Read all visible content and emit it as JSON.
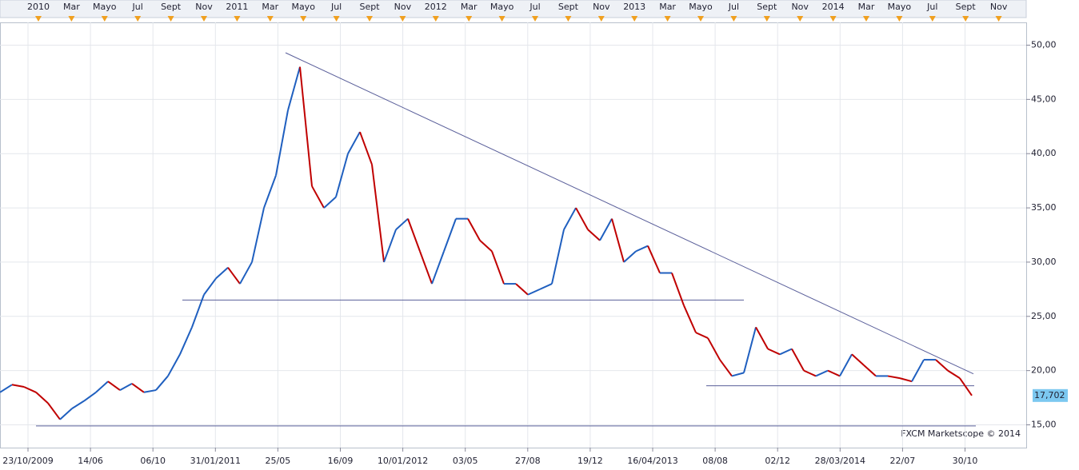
{
  "chart_data": {
    "type": "line",
    "top_axis_labels": [
      "2010",
      "Mar",
      "Mayo",
      "Jul",
      "Sept",
      "Nov",
      "2011",
      "Mar",
      "Mayo",
      "Jul",
      "Sept",
      "Nov",
      "2012",
      "Mar",
      "Mayo",
      "Jul",
      "Sept",
      "Nov",
      "2013",
      "Mar",
      "Mayo",
      "Jul",
      "Sept",
      "Nov",
      "2014",
      "Mar",
      "Mayo",
      "Jul",
      "Sept",
      "Nov"
    ],
    "x_axis_labels": [
      "23/10/2009",
      "14/06",
      "06/10",
      "31/01/2011",
      "25/05",
      "16/09",
      "10/01/2012",
      "03/05",
      "27/08",
      "19/12",
      "16/04/2013",
      "08/08",
      "02/12",
      "28/03/2014",
      "22/07",
      "30/10"
    ],
    "series": [
      {
        "up_color": "#1f5fbf",
        "down_color": "#c00000",
        "values": [
          18,
          18.7,
          18.5,
          18,
          17,
          15.5,
          16.5,
          17.2,
          18,
          19,
          18.2,
          18.8,
          18,
          18.2,
          19.5,
          21.5,
          24,
          27,
          28.5,
          29.5,
          28,
          30,
          35,
          38,
          44,
          48,
          37,
          35,
          36,
          40,
          42,
          39,
          30,
          33,
          34,
          31,
          28,
          31,
          34,
          34,
          32,
          31,
          28,
          28,
          27,
          27.5,
          28,
          33,
          35,
          33,
          32,
          34,
          30,
          31,
          31.5,
          29,
          29,
          26,
          23.5,
          23,
          21,
          19.5,
          19.8,
          24,
          22,
          21.5,
          22,
          20,
          19.5,
          20,
          19.5,
          21.5,
          20.5,
          19.5,
          19.5,
          19.3,
          19,
          21,
          21,
          20,
          19.3,
          17.702
        ]
      }
    ],
    "last_price": {
      "value": 17.702,
      "label": "17,702"
    },
    "trendlines": [
      {
        "values": [
          49.3,
          19.7
        ]
      },
      {
        "values": [
          26.5,
          26.5
        ]
      },
      {
        "values": [
          18.6,
          18.6
        ]
      },
      {
        "values": [
          14.9,
          14.9
        ]
      }
    ],
    "ylim": [
      12.9,
      52.1
    ],
    "yticks": [
      {
        "value": 15,
        "label": "15,00"
      },
      {
        "value": 20,
        "label": "20,00"
      },
      {
        "value": 25,
        "label": "25,00"
      },
      {
        "value": 30,
        "label": "30,00"
      },
      {
        "value": 35,
        "label": "35,00"
      },
      {
        "value": 40,
        "label": "40,00"
      },
      {
        "value": 45,
        "label": "45,00"
      },
      {
        "value": 50,
        "label": "50,00"
      }
    ],
    "grid": true,
    "watermark": "FXCM Marketscope © 2014"
  }
}
